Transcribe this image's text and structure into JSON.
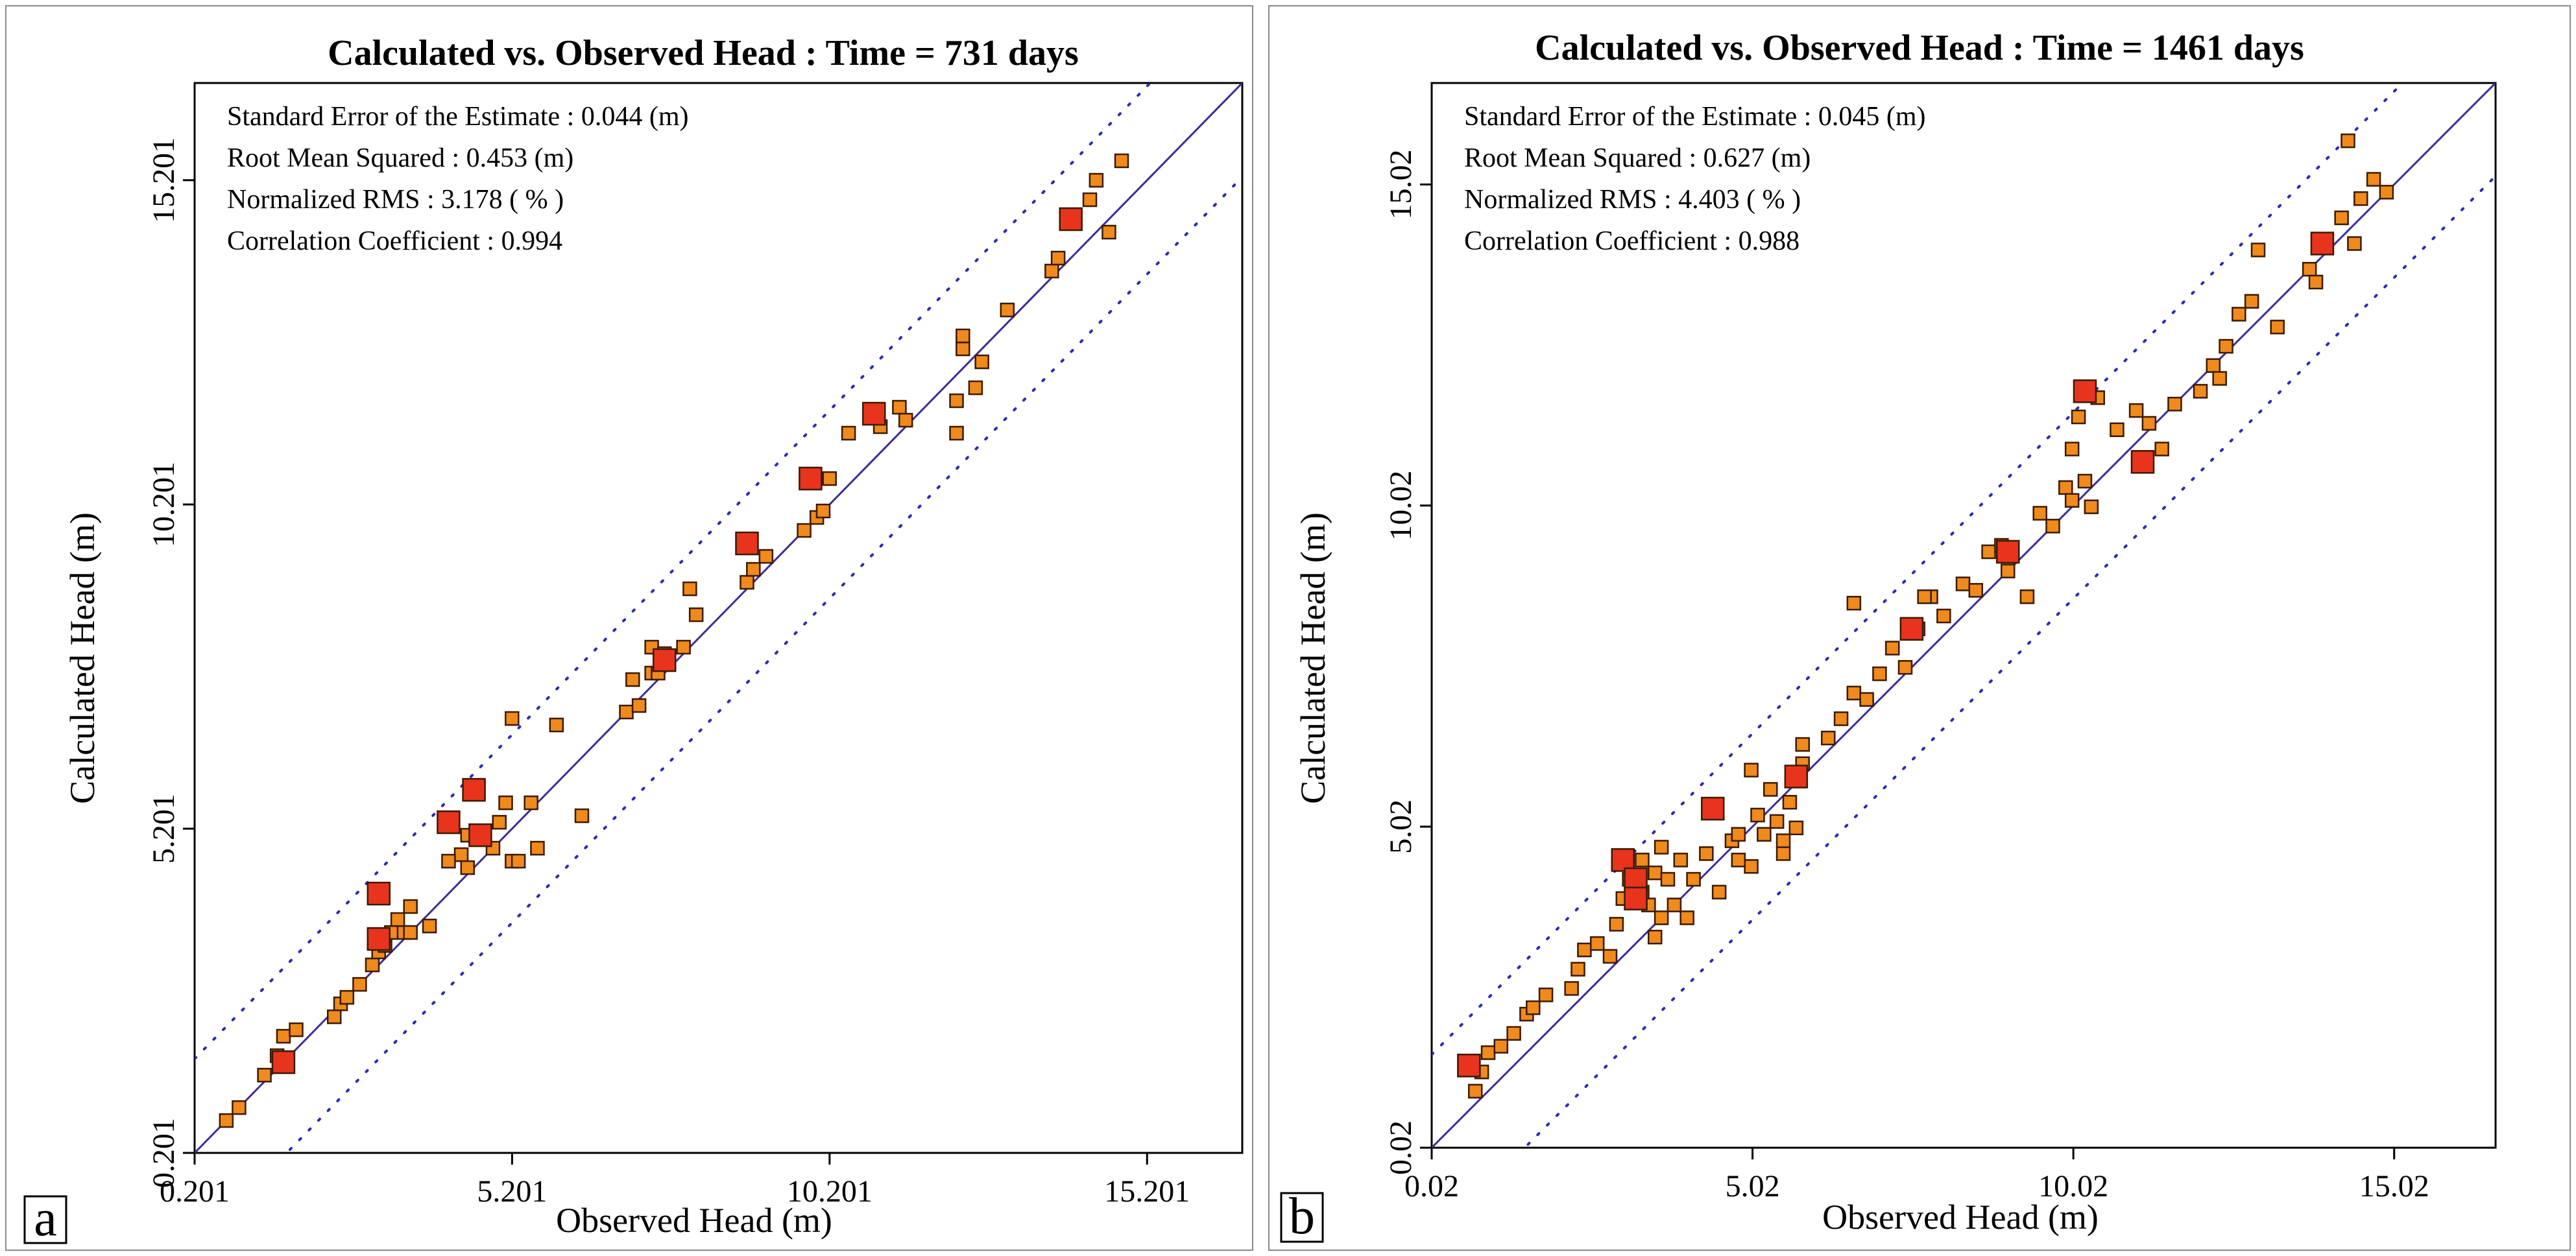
{
  "chart_data": [
    {
      "type": "scatter",
      "panel_letter": "a",
      "title": "Calculated vs. Observed Head : Time = 731 days",
      "xlabel": "Observed Head (m)",
      "ylabel": "Calculated Head (m)",
      "xlim": [
        0.201,
        16.7
      ],
      "ylim": [
        0.201,
        16.7
      ],
      "xticks": [
        0.201,
        5.201,
        10.201,
        15.201
      ],
      "yticks": [
        0.201,
        5.201,
        10.201,
        15.201
      ],
      "xtick_labels": [
        "0.201",
        "5.201",
        "10.201",
        "15.201"
      ],
      "ytick_labels": [
        "0.201",
        "5.201",
        "10.201",
        "15.201"
      ],
      "stats": [
        "Standard Error of the Estimate : 0.044 (m)",
        "Root Mean Squared : 0.453 (m)",
        "Normalized RMS : 3.178 ( % )",
        "Correlation Coefficient : 0.994"
      ],
      "confidence_offset": 1.45,
      "colors": {
        "point": "#f08a1c",
        "highlight": "#e8341c",
        "line": "#3a2e9a",
        "band": "#2a2ab8"
      },
      "series": [
        {
          "marker": "small",
          "x": [
            0.7,
            0.9,
            1.3,
            1.5,
            1.6,
            1.8,
            2.4,
            2.5,
            2.6,
            2.8,
            3.0,
            3.1,
            3.2,
            3.3,
            3.5,
            3.4,
            3.6,
            3.9,
            3.6,
            4.4,
            4.5,
            4.9,
            5.0,
            5.1,
            5.2,
            5.3,
            5.5,
            5.6,
            5.2,
            4.2,
            4.5,
            5.9,
            6.3,
            7.0,
            7.1,
            7.2,
            7.4,
            7.5,
            7.4,
            7.6,
            7.9,
            8.0,
            8.1,
            8.9,
            9.0,
            9.2,
            9.8,
            10.0,
            10.1,
            10.2,
            10.5,
            11.0,
            11.3,
            11.4,
            12.2,
            12.3,
            12.5,
            12.6,
            12.3,
            12.2,
            13.0,
            13.7,
            13.8,
            14.3,
            14.4,
            14.6,
            14.8
          ],
          "y": [
            0.7,
            0.9,
            1.4,
            1.7,
            2.0,
            2.1,
            2.3,
            2.5,
            2.6,
            2.8,
            3.1,
            3.3,
            3.4,
            3.6,
            3.6,
            3.8,
            3.6,
            3.7,
            4.0,
            4.8,
            4.6,
            4.9,
            5.3,
            5.6,
            4.7,
            4.7,
            5.6,
            4.9,
            6.9,
            4.7,
            5.1,
            6.8,
            5.4,
            7.0,
            7.5,
            7.1,
            7.6,
            7.6,
            8.0,
            7.9,
            8.0,
            8.9,
            8.5,
            9.0,
            9.2,
            9.4,
            9.8,
            10.0,
            10.1,
            10.6,
            11.3,
            11.4,
            11.7,
            11.5,
            11.3,
            12.6,
            12.0,
            12.4,
            12.8,
            11.8,
            13.2,
            13.8,
            14.0,
            14.9,
            15.2,
            14.4,
            15.5
          ]
        },
        {
          "marker": "large",
          "x": [
            1.6,
            3.1,
            3.1,
            4.2,
            4.6,
            4.7,
            7.6,
            8.9,
            9.9,
            10.9,
            14.0
          ],
          "y": [
            1.6,
            3.5,
            4.2,
            5.3,
            5.8,
            5.1,
            7.8,
            9.6,
            10.6,
            11.6,
            14.6
          ]
        }
      ]
    },
    {
      "type": "scatter",
      "panel_letter": "b",
      "title": "Calculated vs. Observed Head : Time = 1461 days",
      "xlabel": "Observed Head (m)",
      "ylabel": "Calculated Head (m)",
      "xlim": [
        0.02,
        16.6
      ],
      "ylim": [
        0.02,
        16.6
      ],
      "xticks": [
        0.02,
        5.02,
        10.02,
        15.02
      ],
      "yticks": [
        0.02,
        5.02,
        10.02,
        15.02
      ],
      "xtick_labels": [
        "0.02",
        "5.02",
        "10.02",
        "15.02"
      ],
      "ytick_labels": [
        "0.02",
        "5.02",
        "10.02",
        "15.02"
      ],
      "stats": [
        "Standard Error of the Estimate : 0.045 (m)",
        "Root Mean Squared : 0.627 (m)",
        "Normalized RMS : 4.403 ( % )",
        "Correlation Coefficient : 0.988"
      ],
      "confidence_offset": 1.45,
      "colors": {
        "point": "#f08a1c",
        "highlight": "#e8341c",
        "line": "#3a2e9a",
        "band": "#2a2ab8"
      },
      "series": [
        {
          "marker": "small",
          "x": [
            0.7,
            0.8,
            0.9,
            1.1,
            1.3,
            1.5,
            1.6,
            1.8,
            2.2,
            2.3,
            2.4,
            2.6,
            2.8,
            2.9,
            3.0,
            3.1,
            3.3,
            3.4,
            3.5,
            3.6,
            3.7,
            3.8,
            3.9,
            4.0,
            3.3,
            3.6,
            3.5,
            4.1,
            4.3,
            4.5,
            4.7,
            4.8,
            5.0,
            5.1,
            5.2,
            5.4,
            5.5,
            5.6,
            5.7,
            5.8,
            5.8,
            5.3,
            5.0,
            4.8,
            5.5,
            6.2,
            6.4,
            6.6,
            6.8,
            7.0,
            7.2,
            7.4,
            7.6,
            7.8,
            8.0,
            7.7,
            6.6,
            8.3,
            8.5,
            8.7,
            8.9,
            9.0,
            9.3,
            9.5,
            9.7,
            9.9,
            10.0,
            10.2,
            10.3,
            10.1,
            10.0,
            10.4,
            10.7,
            11.0,
            11.2,
            11.4,
            11.6,
            12.0,
            12.2,
            12.3,
            12.4,
            12.6,
            12.8,
            13.2,
            13.7,
            13.8,
            14.2,
            14.4,
            14.5,
            14.7,
            14.9,
            14.3,
            12.9
          ],
          "y": [
            0.9,
            1.2,
            1.5,
            1.6,
            1.8,
            2.1,
            2.2,
            2.4,
            2.5,
            2.8,
            3.1,
            3.2,
            3.0,
            3.5,
            3.9,
            4.2,
            4.5,
            3.8,
            4.3,
            3.6,
            4.2,
            3.8,
            4.5,
            3.6,
            4.0,
            4.7,
            3.3,
            4.2,
            4.6,
            4.0,
            4.8,
            4.9,
            4.4,
            5.2,
            4.9,
            5.1,
            4.6,
            5.4,
            5.0,
            6.3,
            6.0,
            5.6,
            5.9,
            4.5,
            4.8,
            6.4,
            6.7,
            7.1,
            7.0,
            7.4,
            7.8,
            7.5,
            8.1,
            8.6,
            8.3,
            8.6,
            8.5,
            8.8,
            8.7,
            9.3,
            9.4,
            9.0,
            8.6,
            9.9,
            9.7,
            10.3,
            10.1,
            10.4,
            10.0,
            11.4,
            10.9,
            11.7,
            11.2,
            11.5,
            11.3,
            10.9,
            11.6,
            11.8,
            12.2,
            12.0,
            12.5,
            13.0,
            13.2,
            12.8,
            13.7,
            13.5,
            14.5,
            14.1,
            14.8,
            15.1,
            14.9,
            15.7,
            14.0
          ]
        },
        {
          "marker": "large",
          "x": [
            0.6,
            3.0,
            3.2,
            3.2,
            4.4,
            5.7,
            7.5,
            9.0,
            10.2,
            11.1,
            13.9
          ],
          "y": [
            1.3,
            4.5,
            4.2,
            3.9,
            5.3,
            5.8,
            8.1,
            9.3,
            11.8,
            10.7,
            14.1
          ]
        }
      ]
    }
  ]
}
